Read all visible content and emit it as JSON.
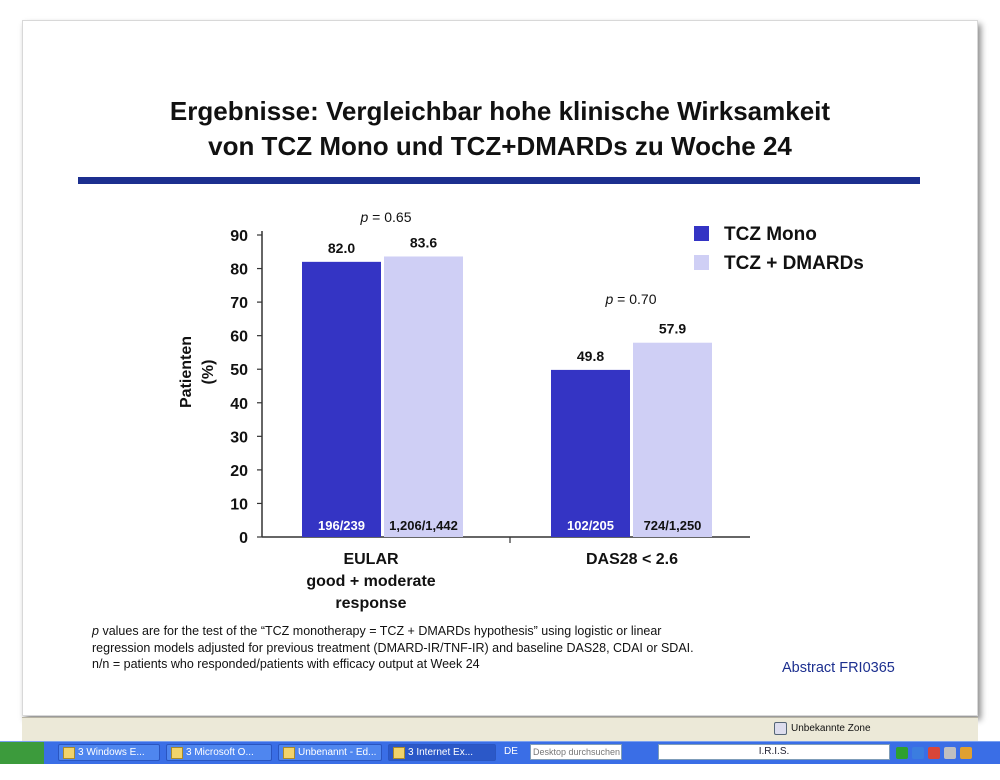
{
  "slide": {
    "title_line1": "Ergebnisse: Vergleichbar hohe klinische Wirksamkeit",
    "title_line2": "von TCZ Mono und TCZ+DMARDs zu Woche 24",
    "footnote_line1": "values are for the test of the “TCZ monotherapy = TCZ + DMARDs hypothesis” using logistic or linear",
    "footnote_p": "p",
    "footnote_line2": "regression models adjusted for previous treatment (DMARD-IR/TNF-IR) and baseline DAS28, CDAI or SDAI.",
    "footnote_line3": "n/n = patients who responded/patients with efficacy output at Week 24",
    "abstract": "Abstract FRI0365"
  },
  "chart_data": {
    "type": "bar",
    "categories": [
      "EULAR\ngood + moderate\nresponse",
      "DAS28 < 2.6"
    ],
    "series": [
      {
        "name": "TCZ Mono",
        "color": "#3434c4",
        "values": [
          82.0,
          49.8
        ],
        "value_labels": [
          "82.0",
          "49.8"
        ],
        "counts": [
          "196/239",
          "102/205"
        ]
      },
      {
        "name": "TCZ + DMARDs",
        "color": "#cfcff5",
        "values": [
          83.6,
          57.9
        ],
        "value_labels": [
          "83.6",
          "57.9"
        ],
        "counts": [
          "1,206/1,442",
          "724/1,250"
        ]
      }
    ],
    "p_values": [
      {
        "prefix": "p",
        "text": " = 0.65"
      },
      {
        "prefix": "p",
        "text": " = 0.70"
      }
    ],
    "ylabel_line1": "Patienten",
    "ylabel_line2": "(%)",
    "ylim": [
      0,
      90
    ],
    "yticks": [
      0,
      10,
      20,
      30,
      40,
      50,
      60,
      70,
      80,
      90
    ],
    "legend_position": "top-right",
    "grid": false
  },
  "window": {
    "status_zone": "Unbekannte Zone",
    "taskbar": [
      {
        "label": "3 Windows E..."
      },
      {
        "label": "3 Microsoft O..."
      },
      {
        "label": "Unbenannt - Ed..."
      },
      {
        "label": "3 Internet Ex..."
      }
    ],
    "lang": "DE",
    "search_placeholder": "Desktop durchsuchen",
    "iris_label": "I.R.I.S."
  },
  "colors": {
    "accent_rule": "#1c2f8f",
    "tcz_mono": "#3434c4",
    "tcz_dmards": "#cfcff5"
  }
}
